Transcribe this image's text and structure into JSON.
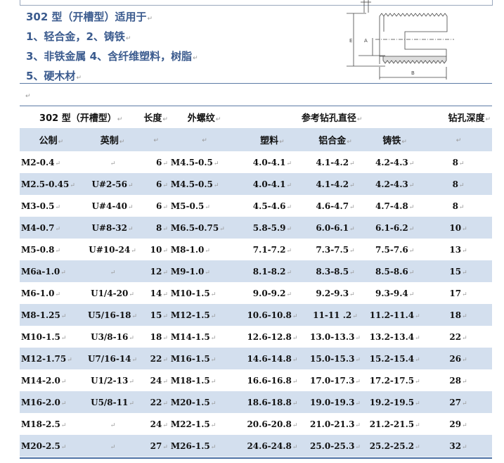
{
  "intro": {
    "lines": [
      "302 型（开槽型）适用于",
      "1、轻合金，2、铸铁",
      "3、非铁金属 4、含纤维塑料，树脂",
      "5、硬木材"
    ]
  },
  "drawing": {
    "labels": {
      "e": "E",
      "a": "A",
      "b": "B"
    }
  },
  "table": {
    "header": {
      "type": "302 型（开槽型）",
      "length": "长度",
      "thread": "外螺纹",
      "drill_dia": "参考钻孔直径",
      "drill_depth": "钻孔深度"
    },
    "subheader": {
      "metric": "公制",
      "imperial": "英制",
      "plastic": "塑料",
      "aluminum": "铝合金",
      "cast_iron": "铸铁"
    },
    "rows": [
      [
        "M2-0.4",
        "",
        "6",
        "M4.5-0.5",
        "4.0-4.1",
        "4.1-4.2",
        "4.2-4.3",
        "8"
      ],
      [
        "M2.5-0.45",
        "U#2-56",
        "6",
        "M4.5-0.5",
        "4.0-4.1",
        "4.1-4.2",
        "4.2-4.3",
        "8"
      ],
      [
        "M3-0.5",
        "U#4-40",
        "6",
        "M5-0.5",
        "4.5-4.6",
        "4.6-4.7",
        "4.7-4.8",
        "8"
      ],
      [
        "M4-0.7",
        "U#8-32",
        "8",
        "M6.5-0.75",
        "5.8-5.9",
        "6.0-6.1",
        "6.1-6.2",
        "10"
      ],
      [
        "M5-0.8",
        "U#10-24",
        "10",
        "M8-1.0",
        "7.1-7.2",
        "7.3-7.5",
        "7.5-7.6",
        "13"
      ],
      [
        "M6a-1.0",
        "",
        "12",
        "M9-1.0",
        "8.1-8.2",
        "8.3-8.5",
        "8.5-8.6",
        "15"
      ],
      [
        "M6-1.0",
        "U1/4-20",
        "14",
        "M10-1.5",
        "9.0-9.2",
        "9.2-9.3",
        "9.3-9.4",
        "17"
      ],
      [
        "M8-1.25",
        "U5/16-18",
        "15",
        "M12-1.5",
        "10.6-10.8",
        "11-11 .2",
        "11.2-11.4",
        "18"
      ],
      [
        "M10-1.5",
        "U3/8-16",
        "18",
        "M14-1.5",
        "12.6-12.8",
        "13.0-13.3",
        "13.2-13.4",
        "22"
      ],
      [
        "M12-1.75",
        "U7/16-14",
        "22",
        "M16-1.5",
        "14.6-14.8",
        "15.0-15.3",
        "15.2-15.4",
        "26"
      ],
      [
        "M14-2.0",
        "U1/2-13",
        "24",
        "M18-1.5",
        "16.6-16.8",
        "17.0-17.3",
        "17.2-17.5",
        "28"
      ],
      [
        "M16-2.0",
        "U5/8-11",
        "22",
        "M20-1.5",
        "18.6-18.8",
        "19.0-19.3",
        "19.2-19.5",
        "27"
      ],
      [
        "M18-2.5",
        "",
        "24",
        "M22-1.5",
        "20.6-20.8",
        "21.0-21.3",
        "21.2-21.5",
        "29"
      ],
      [
        "M20-2.5",
        "",
        "27",
        "M26-1.5",
        "24.6-24.8",
        "25.0-25.3",
        "25.2-25.2",
        "32"
      ]
    ]
  }
}
